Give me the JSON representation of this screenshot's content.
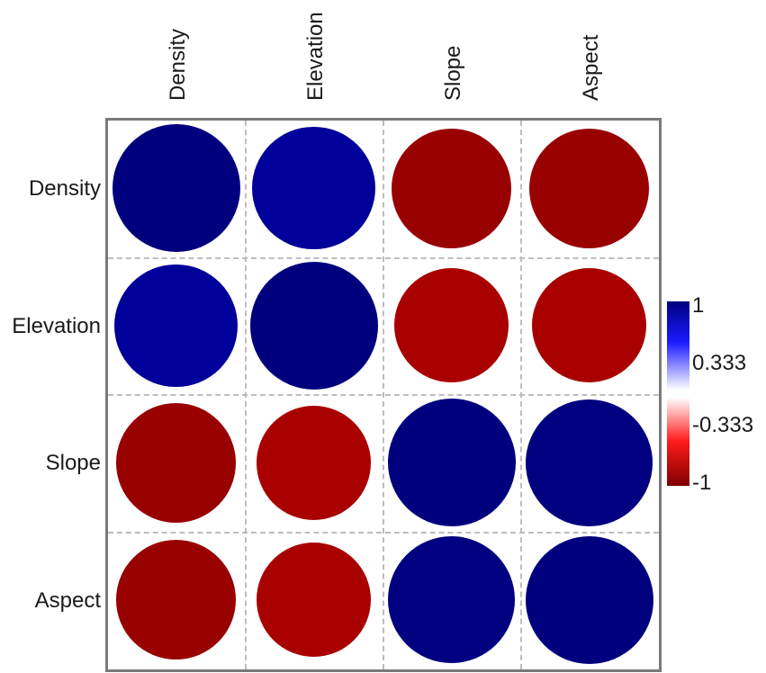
{
  "chart_data": {
    "type": "heatmap",
    "subtype": "correlation-circle-matrix",
    "title": "",
    "variables": [
      "Density",
      "Elevation",
      "Slope",
      "Aspect"
    ],
    "column_labels": [
      "Density",
      "Elevation",
      "Slope",
      "Aspect"
    ],
    "row_labels": [
      "Density",
      "Elevation",
      "Slope",
      "Aspect"
    ],
    "matrix": [
      [
        1.0,
        0.92,
        -0.88,
        -0.88
      ],
      [
        0.92,
        1.0,
        -0.8,
        -0.8
      ],
      [
        -0.88,
        -0.8,
        1.0,
        0.99
      ],
      [
        -0.88,
        -0.8,
        0.99,
        1.0
      ]
    ],
    "cell_colors": [
      [
        "#00007f",
        "#00009a",
        "#990000",
        "#990000"
      ],
      [
        "#00009a",
        "#00007f",
        "#a90000",
        "#a90000"
      ],
      [
        "#990000",
        "#a90000",
        "#00007f",
        "#000080"
      ],
      [
        "#990000",
        "#a90000",
        "#000080",
        "#00007f"
      ]
    ],
    "encoding": "circle area and color proportional to correlation",
    "grid": true,
    "legend": {
      "type": "colorbar",
      "position": "right",
      "range": [
        -1,
        1
      ],
      "tick_labels": [
        "1",
        "0.333",
        "-0.333",
        "-1"
      ],
      "tick_values": [
        1,
        0.333,
        -0.333,
        -1
      ],
      "colors": {
        "max": "#00007f",
        "upper_mid": "#1a1aff",
        "zero": "#ffffff",
        "lower_mid": "#ff1a1a",
        "min": "#7f0000"
      }
    }
  }
}
